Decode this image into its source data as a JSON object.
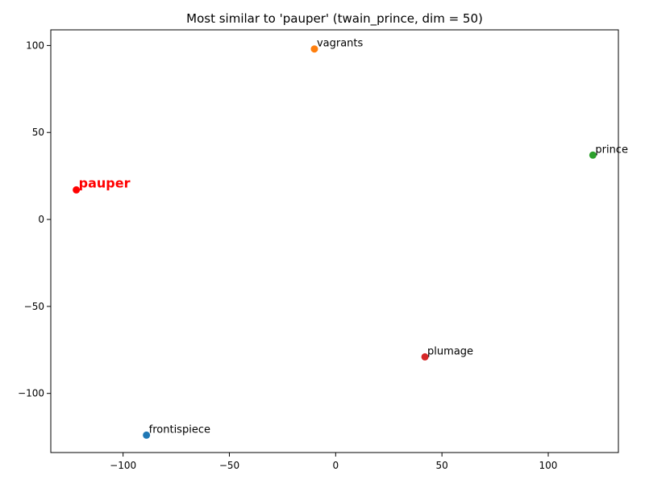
{
  "chart_data": {
    "type": "scatter",
    "title": "Most similar to 'pauper' (twain_prince, dim = 50)",
    "xlabel": "",
    "ylabel": "",
    "xlim": [
      -134,
      133
    ],
    "ylim": [
      -134,
      109
    ],
    "xticks": [
      -100,
      -50,
      0,
      50,
      100
    ],
    "yticks": [
      100,
      50,
      0,
      -50,
      -100
    ],
    "xtick_labels": [
      "−100",
      "−50",
      "0",
      "50",
      "100"
    ],
    "ytick_labels": [
      "100",
      "50",
      "0",
      "−50",
      "−100"
    ],
    "grid": false,
    "points": [
      {
        "label": "pauper",
        "x": -122,
        "y": 17,
        "color": "#ff0000",
        "highlight": true
      },
      {
        "label": "vagrants",
        "x": -10,
        "y": 98,
        "color": "#ff7f0e",
        "highlight": false
      },
      {
        "label": "prince",
        "x": 121,
        "y": 37,
        "color": "#2ca02c",
        "highlight": false
      },
      {
        "label": "plumage",
        "x": 42,
        "y": -79,
        "color": "#d62728",
        "highlight": false
      },
      {
        "label": "frontispiece",
        "x": -89,
        "y": -124,
        "color": "#1f77b4",
        "highlight": false
      }
    ]
  }
}
